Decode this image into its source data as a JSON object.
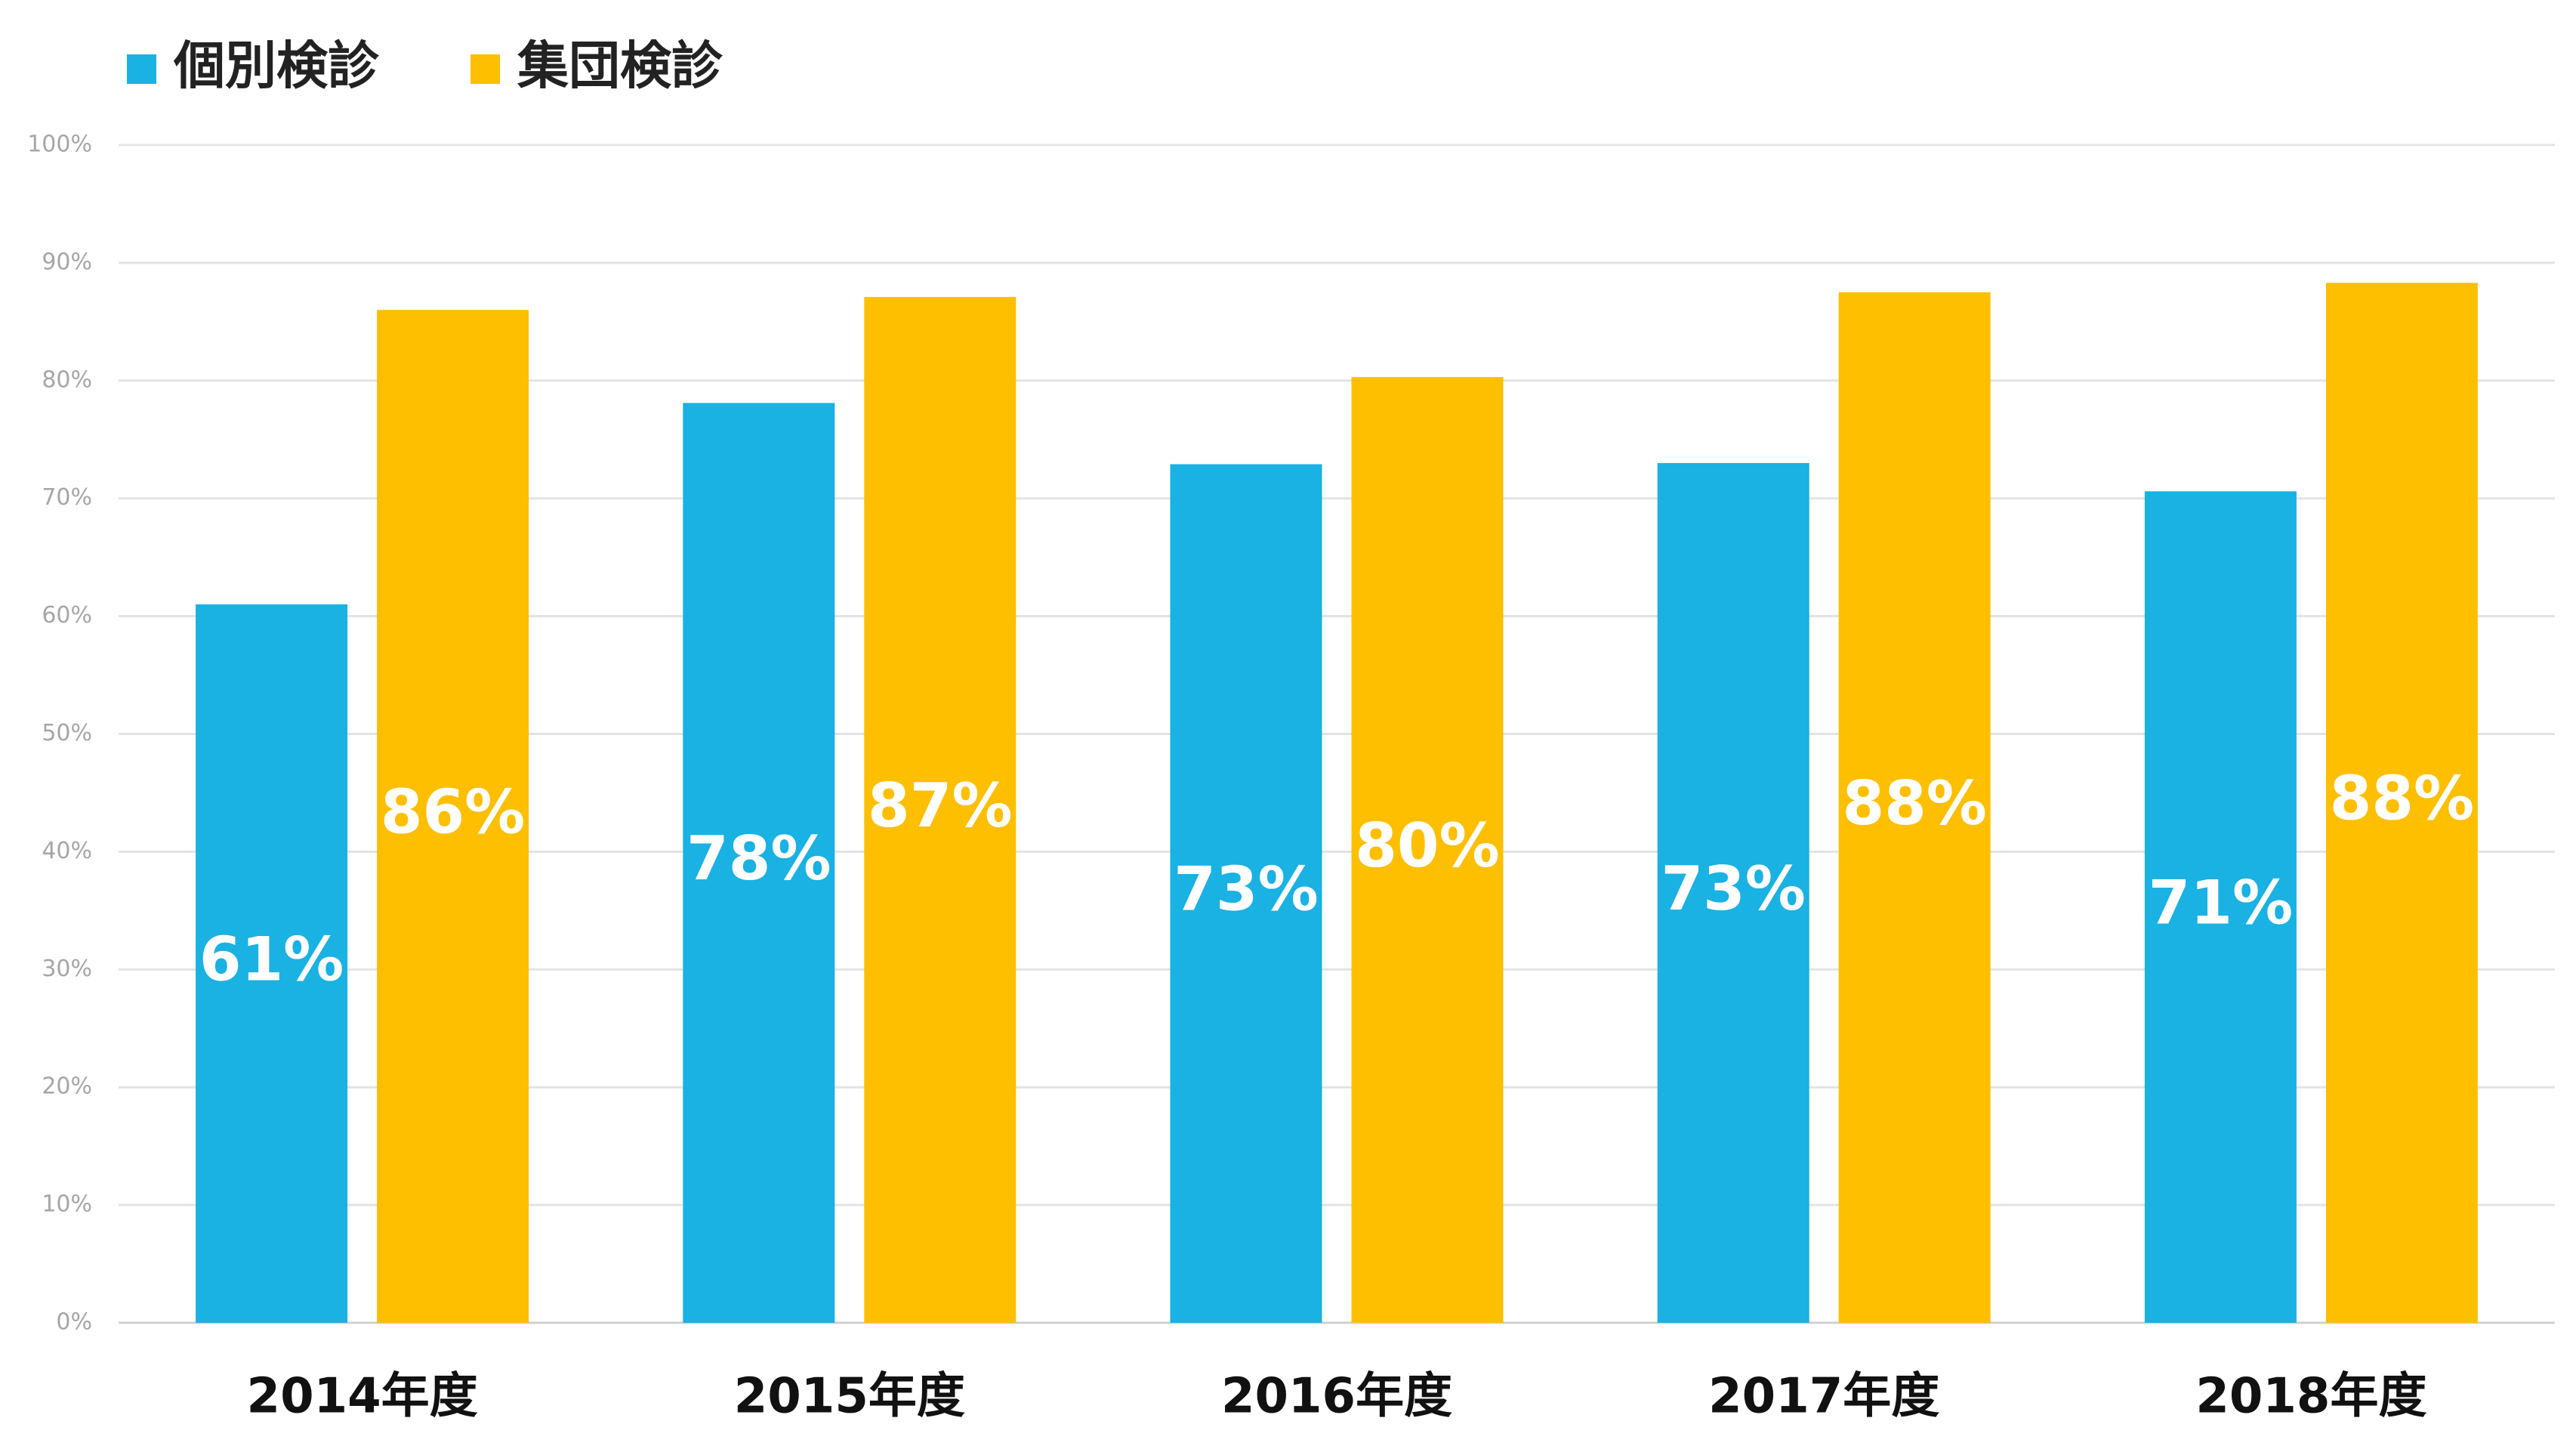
{
  "chart_data": {
    "type": "bar",
    "categories": [
      "2014年度",
      "2015年度",
      "2016年度",
      "2017年度",
      "2018年度"
    ],
    "series": [
      {
        "name": "個別検診",
        "color": "#1ab1e3",
        "values": [
          61,
          78.1,
          72.9,
          73,
          70.6
        ],
        "value_labels": [
          "61%",
          "78%",
          "73%",
          "73%",
          "71%"
        ]
      },
      {
        "name": "集団検診",
        "color": "#fdbf00",
        "values": [
          86,
          87.1,
          80.3,
          87.5,
          88.3
        ],
        "value_labels": [
          "86%",
          "87%",
          "80%",
          "88%",
          "88%"
        ]
      }
    ],
    "ylim": [
      0,
      100
    ],
    "yticks": [
      {
        "value": 0,
        "label": "0%"
      },
      {
        "value": 10,
        "label": "10%"
      },
      {
        "value": 20,
        "label": "20%"
      },
      {
        "value": 30,
        "label": "30%"
      },
      {
        "value": 40,
        "label": "40%"
      },
      {
        "value": 50,
        "label": "50%"
      },
      {
        "value": 60,
        "label": "60%"
      },
      {
        "value": 70,
        "label": "70%"
      },
      {
        "value": 80,
        "label": "80%"
      },
      {
        "value": 90,
        "label": "90%"
      },
      {
        "value": 100,
        "label": "100%"
      }
    ],
    "grid": true,
    "legend": "top-left"
  }
}
